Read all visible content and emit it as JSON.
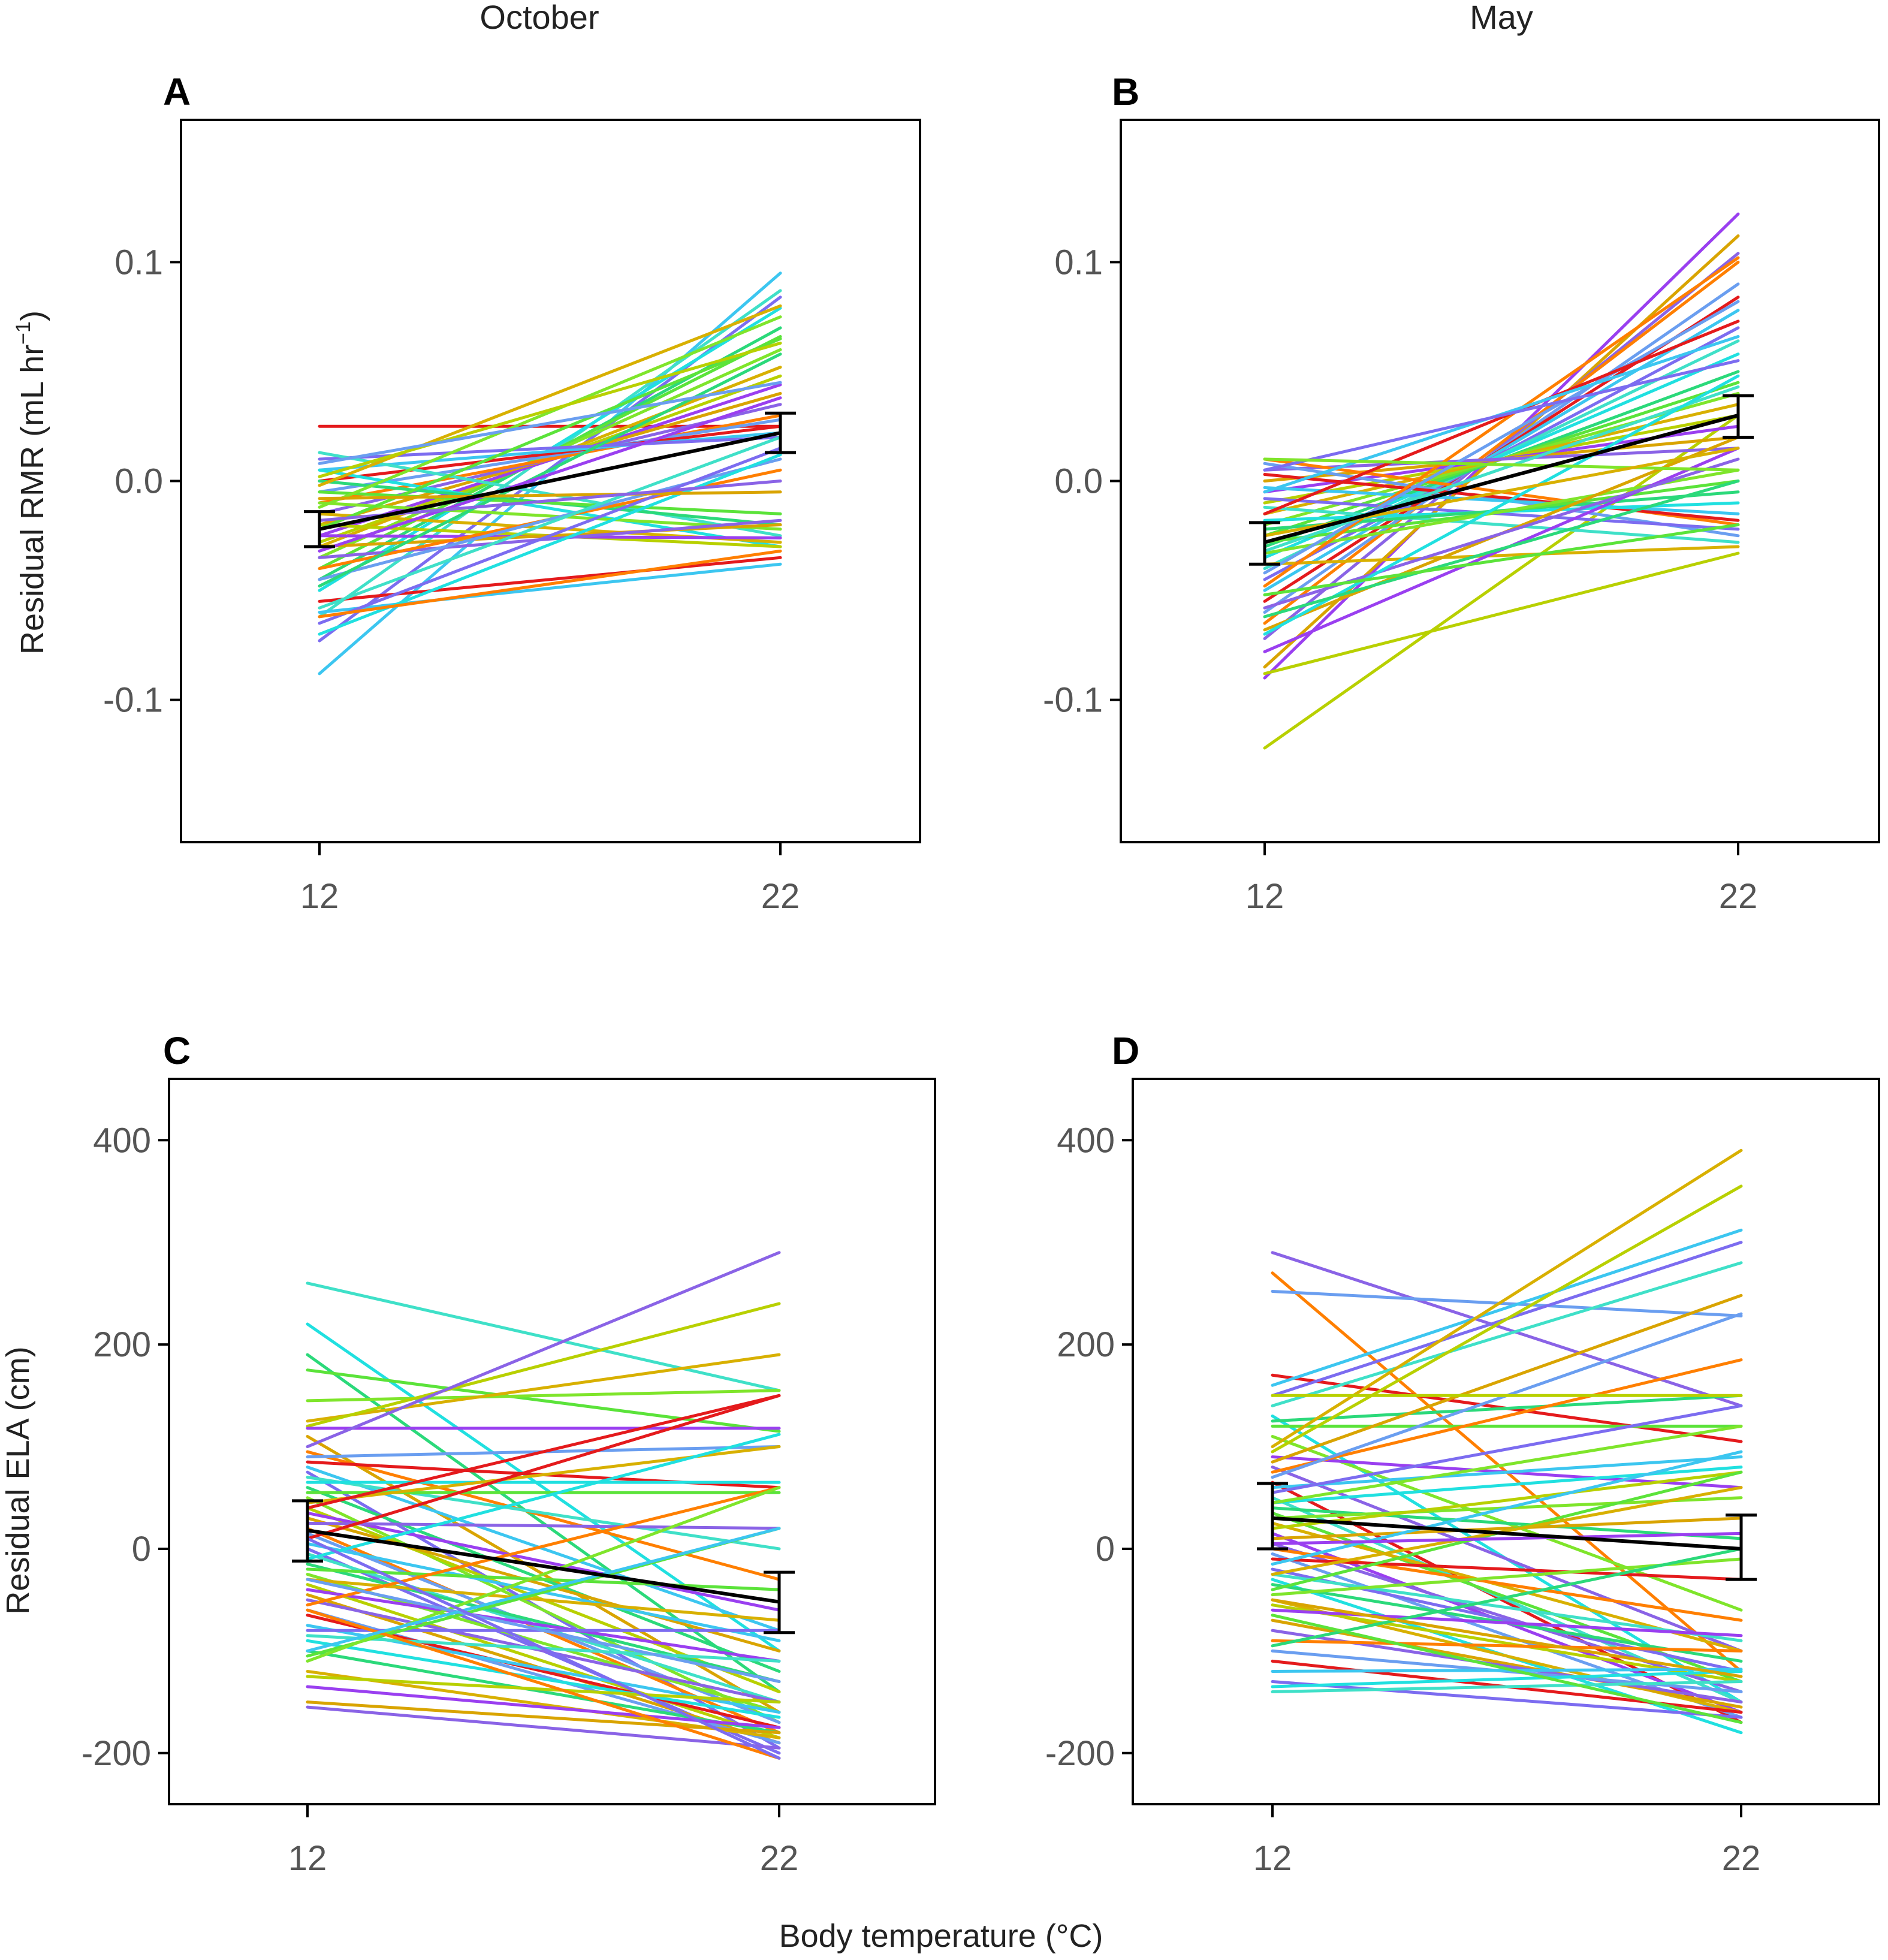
{
  "figure": {
    "column_titles": [
      "October",
      "May"
    ],
    "xlabel": "Body temperature (°C)",
    "ylabel_top_main": "Residual RMR (mL hr",
    "ylabel_top_sup": "−1",
    "ylabel_top_close": ")",
    "ylabel_bottom": "Residual ELA (cm)"
  },
  "chart_data": [
    {
      "panel": "A",
      "type": "line",
      "column": "October",
      "xlabel": "Body temperature (°C)",
      "ylabel": "Residual RMR (mL hr−1)",
      "x": [
        12,
        22
      ],
      "xticks": [
        "12",
        "22"
      ],
      "ylim": [
        -0.165,
        0.165
      ],
      "yticks": [
        -0.1,
        0.0,
        0.1
      ],
      "yticklabels": [
        "-0.1",
        "0.0",
        "0.1"
      ],
      "individual_lines_note": "many individual reaction norms (colored lines)",
      "individual_lines": [
        [
          0.025,
          0.025
        ],
        [
          -0.088,
          0.095
        ],
        [
          -0.073,
          0.084
        ],
        [
          -0.062,
          0.087
        ],
        [
          -0.05,
          0.079
        ],
        [
          -0.045,
          0.07
        ],
        [
          -0.04,
          0.066
        ],
        [
          -0.035,
          0.06
        ],
        [
          -0.03,
          0.052
        ],
        [
          -0.028,
          0.048
        ],
        [
          -0.025,
          0.044
        ],
        [
          -0.02,
          0.04
        ],
        [
          -0.015,
          0.035
        ],
        [
          -0.01,
          0.03
        ],
        [
          -0.005,
          0.028
        ],
        [
          0.0,
          0.025
        ],
        [
          0.005,
          0.022
        ],
        [
          0.01,
          0.02
        ],
        [
          0.013,
          -0.025
        ],
        [
          0.005,
          -0.03
        ],
        [
          0.0,
          -0.02
        ],
        [
          -0.005,
          -0.015
        ],
        [
          -0.01,
          -0.022
        ],
        [
          -0.015,
          -0.028
        ],
        [
          -0.02,
          -0.03
        ],
        [
          -0.025,
          -0.026
        ],
        [
          -0.03,
          -0.02
        ],
        [
          -0.035,
          -0.018
        ],
        [
          -0.04,
          0.005
        ],
        [
          -0.045,
          0.01
        ],
        [
          -0.055,
          -0.035
        ],
        [
          -0.06,
          -0.038
        ],
        [
          -0.065,
          0.015
        ],
        [
          -0.058,
          0.02
        ],
        [
          -0.07,
          0.012
        ],
        [
          -0.048,
          0.058
        ],
        [
          -0.022,
          0.065
        ],
        [
          -0.012,
          0.075
        ],
        [
          -0.002,
          0.08
        ],
        [
          0.002,
          0.063
        ],
        [
          -0.032,
          0.038
        ],
        [
          -0.008,
          -0.005
        ],
        [
          -0.018,
          0.0
        ],
        [
          -0.062,
          -0.032
        ],
        [
          0.008,
          0.045
        ]
      ],
      "mean_line": {
        "x": [
          12,
          22
        ],
        "y": [
          -0.022,
          0.022
        ],
        "err_low": [
          -0.03,
          0.013
        ],
        "err_high": [
          -0.014,
          0.031
        ]
      }
    },
    {
      "panel": "B",
      "type": "line",
      "column": "May",
      "xlabel": "Body temperature (°C)",
      "ylabel": "Residual RMR (mL hr−1)",
      "x": [
        12,
        22
      ],
      "xticks": [
        "12",
        "22"
      ],
      "ylim": [
        -0.165,
        0.165
      ],
      "yticks": [
        -0.1,
        0.0,
        0.1
      ],
      "yticklabels": [
        "-0.1",
        "0.0",
        "0.1"
      ],
      "individual_lines_note": "many individual reaction norms (colored lines)",
      "individual_lines": [
        [
          -0.122,
          0.03
        ],
        [
          -0.09,
          0.122
        ],
        [
          -0.085,
          0.112
        ],
        [
          -0.072,
          0.104
        ],
        [
          -0.065,
          0.1
        ],
        [
          -0.06,
          0.09
        ],
        [
          -0.055,
          0.084
        ],
        [
          -0.05,
          0.078
        ],
        [
          -0.045,
          0.07
        ],
        [
          -0.04,
          0.064
        ],
        [
          -0.035,
          0.058
        ],
        [
          -0.03,
          0.05
        ],
        [
          -0.025,
          0.045
        ],
        [
          -0.02,
          0.04
        ],
        [
          -0.015,
          0.035
        ],
        [
          -0.01,
          0.03
        ],
        [
          -0.005,
          0.025
        ],
        [
          0.0,
          0.02
        ],
        [
          0.005,
          0.015
        ],
        [
          0.01,
          -0.02
        ],
        [
          0.008,
          -0.025
        ],
        [
          0.003,
          -0.018
        ],
        [
          -0.003,
          -0.015
        ],
        [
          -0.008,
          -0.022
        ],
        [
          -0.012,
          -0.028
        ],
        [
          -0.018,
          -0.01
        ],
        [
          -0.022,
          -0.005
        ],
        [
          -0.028,
          0.0
        ],
        [
          -0.033,
          0.005
        ],
        [
          -0.038,
          -0.03
        ],
        [
          -0.088,
          -0.033
        ],
        [
          -0.078,
          0.015
        ],
        [
          -0.068,
          0.02
        ],
        [
          -0.058,
          0.01
        ],
        [
          -0.048,
          0.102
        ],
        [
          -0.042,
          0.082
        ],
        [
          -0.015,
          0.073
        ],
        [
          -0.005,
          0.066
        ],
        [
          0.005,
          0.055
        ],
        [
          -0.032,
          0.043
        ],
        [
          -0.07,
          0.048
        ],
        [
          -0.062,
          0.0
        ],
        [
          -0.052,
          -0.02
        ],
        [
          0.01,
          0.005
        ],
        [
          -0.025,
          0.015
        ]
      ],
      "mean_line": {
        "x": [
          12,
          22
        ],
        "y": [
          -0.028,
          0.03
        ],
        "err_low": [
          -0.038,
          0.02
        ],
        "err_high": [
          -0.019,
          0.039
        ]
      }
    },
    {
      "panel": "C",
      "type": "line",
      "column": "October",
      "xlabel": "Body temperature (°C)",
      "ylabel": "Residual ELA (cm)",
      "x": [
        12,
        22
      ],
      "xticks": [
        "12",
        "22"
      ],
      "ylim": [
        -250,
        460
      ],
      "yticks": [
        -200,
        0,
        200,
        400
      ],
      "yticklabels": [
        "-200",
        "0",
        "200",
        "400"
      ],
      "individual_lines_note": "many individual reaction norms (colored lines)",
      "individual_lines": [
        [
          260,
          155
        ],
        [
          220,
          -100
        ],
        [
          190,
          -140
        ],
        [
          175,
          115
        ],
        [
          145,
          155
        ],
        [
          125,
          190
        ],
        [
          120,
          240
        ],
        [
          118,
          118
        ],
        [
          110,
          -160
        ],
        [
          100,
          290
        ],
        [
          95,
          -30
        ],
        [
          90,
          100
        ],
        [
          85,
          60
        ],
        [
          80,
          -80
        ],
        [
          75,
          -195
        ],
        [
          70,
          0
        ],
        [
          65,
          65
        ],
        [
          60,
          -120
        ],
        [
          55,
          55
        ],
        [
          50,
          -170
        ],
        [
          45,
          100
        ],
        [
          40,
          -140
        ],
        [
          35,
          -60
        ],
        [
          30,
          -100
        ],
        [
          25,
          20
        ],
        [
          20,
          -180
        ],
        [
          15,
          -170
        ],
        [
          10,
          150
        ],
        [
          5,
          -90
        ],
        [
          0,
          -200
        ],
        [
          -5,
          -150
        ],
        [
          -10,
          112
        ],
        [
          -15,
          -130
        ],
        [
          -20,
          -40
        ],
        [
          -25,
          -160
        ],
        [
          -30,
          -70
        ],
        [
          -35,
          -185
        ],
        [
          -40,
          -110
        ],
        [
          -45,
          -190
        ],
        [
          -50,
          -150
        ],
        [
          -55,
          60
        ],
        [
          -60,
          -190
        ],
        [
          -65,
          -175
        ],
        [
          -75,
          -160
        ],
        [
          -80,
          -80
        ],
        [
          -85,
          -110
        ],
        [
          -90,
          -165
        ],
        [
          -100,
          -180
        ],
        [
          -105,
          20
        ],
        [
          -110,
          60
        ],
        [
          -120,
          -185
        ],
        [
          -125,
          -150
        ],
        [
          -135,
          -175
        ],
        [
          -150,
          -180
        ],
        [
          -155,
          -195
        ],
        [
          -60,
          -205
        ],
        [
          -30,
          -130
        ],
        [
          40,
          150
        ],
        [
          -100,
          20
        ],
        [
          10,
          -205
        ]
      ],
      "mean_line": {
        "x": [
          12,
          22
        ],
        "y": [
          18,
          -52
        ],
        "err_low": [
          -12,
          -82
        ],
        "err_high": [
          47,
          -23
        ]
      }
    },
    {
      "panel": "D",
      "type": "line",
      "column": "May",
      "xlabel": "Body temperature (°C)",
      "ylabel": "Residual ELA (cm)",
      "x": [
        12,
        22
      ],
      "xticks": [
        "12",
        "22"
      ],
      "ylim": [
        -250,
        460
      ],
      "yticks": [
        -200,
        0,
        200,
        400
      ],
      "yticklabels": [
        "-200",
        "0",
        "200",
        "400"
      ],
      "individual_lines_note": "many individual reaction norms (colored lines)",
      "individual_lines": [
        [
          290,
          140
        ],
        [
          270,
          -120
        ],
        [
          252,
          228
        ],
        [
          170,
          105
        ],
        [
          160,
          312
        ],
        [
          150,
          300
        ],
        [
          140,
          280
        ],
        [
          130,
          -150
        ],
        [
          125,
          150
        ],
        [
          120,
          120
        ],
        [
          110,
          -60
        ],
        [
          100,
          390
        ],
        [
          95,
          355
        ],
        [
          90,
          60
        ],
        [
          85,
          248
        ],
        [
          80,
          -100
        ],
        [
          75,
          185
        ],
        [
          70,
          230
        ],
        [
          65,
          -170
        ],
        [
          60,
          90
        ],
        [
          55,
          140
        ],
        [
          50,
          -150
        ],
        [
          45,
          80
        ],
        [
          40,
          10
        ],
        [
          35,
          -130
        ],
        [
          30,
          50
        ],
        [
          25,
          -100
        ],
        [
          20,
          75
        ],
        [
          15,
          -160
        ],
        [
          10,
          30
        ],
        [
          5,
          -140
        ],
        [
          0,
          -70
        ],
        [
          -5,
          -165
        ],
        [
          -10,
          -30
        ],
        [
          -15,
          95
        ],
        [
          -20,
          -120
        ],
        [
          -25,
          -90
        ],
        [
          -30,
          -180
        ],
        [
          -35,
          -110
        ],
        [
          -40,
          75
        ],
        [
          -45,
          -10
        ],
        [
          -50,
          -160
        ],
        [
          -55,
          -130
        ],
        [
          -60,
          -85
        ],
        [
          -70,
          -155
        ],
        [
          -80,
          -150
        ],
        [
          -90,
          -100
        ],
        [
          -100,
          -140
        ],
        [
          -110,
          -160
        ],
        [
          -120,
          -118
        ],
        [
          -130,
          -165
        ],
        [
          -140,
          -130
        ],
        [
          -135,
          -120
        ],
        [
          -95,
          0
        ],
        [
          -65,
          -170
        ],
        [
          45,
          120
        ],
        [
          -25,
          60
        ],
        [
          150,
          150
        ],
        [
          5,
          15
        ],
        [
          -50,
          -125
        ]
      ],
      "mean_line": {
        "x": [
          12,
          22
        ],
        "y": [
          30,
          0
        ],
        "err_low": [
          0,
          -30
        ],
        "err_high": [
          64,
          33
        ]
      }
    }
  ]
}
